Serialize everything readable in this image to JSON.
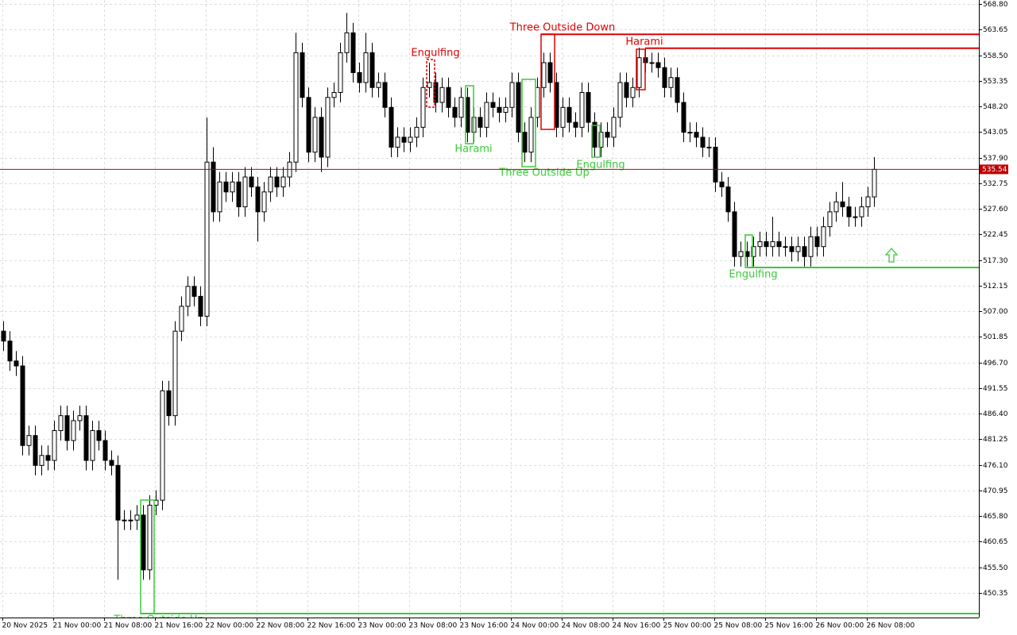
{
  "chart_data": {
    "type": "candlestick",
    "ylim": [
      445.4,
      569.6
    ],
    "yticks": [
      {
        "value": 568.8,
        "label": "568.80"
      },
      563.65,
      {
        "value": 558.5,
        "label": "558.50"
      },
      553.35,
      {
        "value": 548.2,
        "label": "548.20"
      },
      543.05,
      {
        "value": 537.9,
        "label": "537.90"
      },
      532.75,
      {
        "value": 527.6,
        "label": "527.60"
      },
      522.45,
      {
        "value": 517.3,
        "label": "517.30"
      },
      512.15,
      {
        "value": 507,
        "label": "507.00"
      },
      501.85,
      {
        "value": 496.7,
        "label": "496.70"
      },
      491.55,
      {
        "value": 486.4,
        "label": "486.40"
      },
      481.25,
      {
        "value": 476.1,
        "label": "476.10"
      },
      470.95,
      {
        "value": 465.8,
        "label": "465.80"
      },
      460.65,
      {
        "value": 455.5,
        "label": "455.50"
      },
      450.35
    ],
    "xticks": [
      "20 Nov 2025",
      "21 Nov 00:00",
      "21 Nov 08:00",
      "21 Nov 16:00",
      "22 Nov 00:00",
      "22 Nov 08:00",
      "22 Nov 16:00",
      "23 Nov 00:00",
      "23 Nov 08:00",
      "23 Nov 16:00",
      "24 Nov 00:00",
      "24 Nov 08:00",
      "24 Nov 16:00",
      "25 Nov 00:00",
      "25 Nov 08:00",
      "25 Nov 16:00",
      "26 Nov 00:00",
      "26 Nov 08:00"
    ],
    "grid": true,
    "up_color": "#ffffff",
    "down_color": "#000000",
    "open": [
      503,
      501,
      497,
      496,
      480,
      482,
      476,
      478,
      477,
      483,
      486,
      481,
      485,
      486,
      477,
      483,
      481,
      477,
      476,
      465,
      465,
      465,
      466,
      455,
      468,
      469,
      491,
      486,
      503,
      508,
      512,
      510,
      506,
      537,
      527,
      533,
      531,
      533,
      528,
      534,
      532,
      527,
      531,
      534,
      532,
      534,
      537,
      559,
      550,
      539,
      546,
      538,
      550,
      551,
      559,
      563,
      555,
      553,
      559,
      552,
      553,
      548,
      540,
      542,
      541,
      542,
      544,
      552,
      553,
      549,
      552,
      548,
      546,
      550,
      543,
      546,
      544,
      549,
      548,
      547,
      548,
      553,
      543,
      539,
      546,
      552,
      557,
      553,
      544,
      548,
      545,
      544,
      551,
      545,
      540,
      543,
      542,
      546,
      553,
      550,
      552,
      558,
      557,
      557,
      556,
      552,
      554,
      549,
      543,
      543,
      542,
      540,
      540,
      533,
      532,
      527,
      518,
      519,
      518,
      520,
      521,
      520,
      521,
      520,
      520,
      519,
      520,
      518,
      522,
      520,
      524,
      527,
      529,
      528,
      526,
      526,
      528,
      530
    ],
    "high": [
      505,
      503,
      499,
      498,
      484,
      484,
      480,
      480,
      485,
      488,
      488,
      487,
      488,
      488,
      485,
      485,
      483,
      479,
      478,
      467,
      467,
      468,
      468,
      470,
      471,
      493,
      493,
      505,
      510,
      514,
      514,
      512,
      546,
      540,
      535,
      535,
      535,
      535,
      536,
      536,
      534,
      533,
      536,
      536,
      536,
      539,
      563,
      561,
      552,
      548,
      548,
      552,
      553,
      561,
      567,
      565,
      557,
      563,
      561,
      555,
      555,
      550,
      544,
      544,
      544,
      546,
      554,
      557,
      555,
      554,
      554,
      550,
      552,
      552,
      548,
      548,
      551,
      551,
      550,
      550,
      555,
      555,
      545,
      548,
      554,
      559,
      559,
      555,
      550,
      550,
      547,
      553,
      553,
      547,
      545,
      545,
      548,
      555,
      555,
      554,
      560,
      560,
      559,
      559,
      558,
      556,
      556,
      551,
      545,
      545,
      544,
      542,
      542,
      535,
      534,
      529,
      521,
      521,
      522,
      523,
      523,
      526,
      523,
      522,
      522,
      522,
      522,
      524,
      524,
      526,
      529,
      531,
      533,
      530,
      528,
      530,
      532,
      538
    ],
    "low": [
      499,
      495,
      494,
      478,
      478,
      474,
      474,
      475,
      475,
      481,
      479,
      479,
      483,
      475,
      475,
      479,
      475,
      474,
      453,
      463,
      463,
      463,
      453,
      453,
      466,
      467,
      484,
      484,
      501,
      506,
      508,
      504,
      504,
      525,
      525,
      529,
      529,
      526,
      526,
      530,
      521,
      525,
      529,
      530,
      530,
      532,
      535,
      548,
      537,
      537,
      535,
      536,
      548,
      549,
      557,
      553,
      551,
      551,
      550,
      550,
      546,
      538,
      538,
      539,
      539,
      540,
      542,
      550,
      547,
      547,
      546,
      544,
      544,
      541,
      541,
      542,
      542,
      546,
      545,
      545,
      546,
      541,
      537,
      537,
      544,
      550,
      551,
      542,
      542,
      543,
      542,
      542,
      543,
      538,
      538,
      540,
      540,
      544,
      548,
      548,
      550,
      555,
      555,
      554,
      550,
      550,
      547,
      541,
      541,
      540,
      538,
      538,
      531,
      530,
      525,
      516,
      516,
      516,
      516,
      518,
      518,
      518,
      518,
      518,
      517,
      517,
      516,
      516,
      518,
      518,
      522,
      525,
      526,
      524,
      524,
      524,
      526,
      528
    ],
    "close": [
      501,
      497,
      496,
      480,
      482,
      476,
      478,
      477,
      483,
      486,
      481,
      485,
      486,
      477,
      483,
      481,
      477,
      476,
      465,
      465,
      465,
      466,
      455,
      468,
      469,
      491,
      486,
      503,
      508,
      512,
      510,
      506,
      537,
      527,
      533,
      531,
      533,
      528,
      534,
      532,
      527,
      531,
      534,
      532,
      534,
      537,
      559,
      550,
      539,
      546,
      538,
      550,
      551,
      559,
      563,
      555,
      553,
      559,
      552,
      553,
      548,
      540,
      542,
      541,
      542,
      544,
      552,
      553,
      549,
      552,
      548,
      546,
      550,
      543,
      546,
      544,
      549,
      548,
      547,
      548,
      553,
      543,
      539,
      546,
      552,
      557,
      553,
      544,
      548,
      545,
      544,
      551,
      545,
      540,
      543,
      542,
      546,
      553,
      550,
      552,
      558,
      557,
      557,
      556,
      552,
      554,
      549,
      543,
      543,
      542,
      540,
      540,
      533,
      532,
      527,
      518,
      519,
      518,
      520,
      521,
      520,
      521,
      520,
      520,
      519,
      520,
      518,
      522,
      520,
      524,
      527,
      529,
      528,
      526,
      526,
      528,
      530,
      535.54
    ],
    "current_price": 535.54,
    "current_price_color": "#c00000",
    "patterns": [
      {
        "label": "Engulfing",
        "color": "#e00000"
      },
      {
        "label": "Three Outside Down",
        "color": "#e00000"
      },
      {
        "label": "Harami",
        "color": "#e00000"
      },
      {
        "label": "Harami",
        "color": "#3cc83c"
      },
      {
        "label": "Three Outside Up",
        "color": "#3cc83c"
      },
      {
        "label": "Engulfing",
        "color": "#3cc83c"
      },
      {
        "label": "Engulfing",
        "color": "#3cc83c"
      },
      {
        "label": "Three Outside Up",
        "color": "#3cc83c"
      }
    ],
    "levels": [
      {
        "value": 562.7,
        "color": "#e00000"
      },
      {
        "value": 559.9,
        "color": "#e00000"
      },
      {
        "value": 515.8,
        "color": "#3cc83c"
      },
      {
        "value": 446.2,
        "color": "#3cc83c"
      }
    ]
  }
}
